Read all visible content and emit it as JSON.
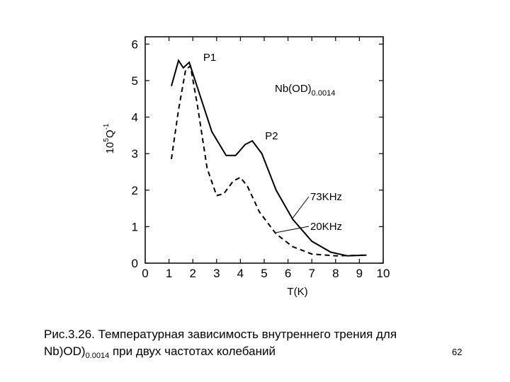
{
  "chart_data": {
    "type": "line",
    "x_label": "T(K)",
    "y_label": {
      "base": "10",
      "exp": "5",
      "symbol": "Q",
      "symbol_exp": "-1"
    },
    "formula": {
      "text": "Nb(OD)",
      "sub": "0.0014"
    },
    "peak_labels": [
      {
        "text": "P1",
        "x": 1.9,
        "y": 5.5
      },
      {
        "text": "P2",
        "x": 4.5,
        "y": 3.35
      }
    ],
    "series": [
      {
        "name": "73KHz",
        "color": "#000000",
        "dash": false,
        "x": [
          1.1,
          1.4,
          1.6,
          1.85,
          2.2,
          2.8,
          3.4,
          3.8,
          4.2,
          4.5,
          4.9,
          5.5,
          6.2,
          7,
          7.8,
          8.5,
          9.3
        ],
        "values": [
          4.85,
          5.55,
          5.35,
          5.5,
          4.8,
          3.6,
          2.95,
          2.95,
          3.25,
          3.35,
          3.0,
          2.0,
          1.2,
          0.6,
          0.3,
          0.2,
          0.22
        ]
      },
      {
        "name": "20KHz",
        "color": "#000000",
        "dash": true,
        "x": [
          1.1,
          1.4,
          1.7,
          1.9,
          2.2,
          2.6,
          3.0,
          3.3,
          3.7,
          4.0,
          4.3,
          4.8,
          5.5,
          6.2,
          7,
          8,
          9.3
        ],
        "values": [
          2.85,
          4.2,
          5.3,
          5.4,
          4.3,
          2.6,
          1.85,
          1.9,
          2.25,
          2.35,
          2.1,
          1.4,
          0.8,
          0.45,
          0.25,
          0.2,
          0.22
        ]
      }
    ],
    "xlim": [
      0,
      10
    ],
    "xticks": [
      0,
      1,
      2,
      3,
      4,
      5,
      6,
      7,
      8,
      9,
      10
    ],
    "ylim": [
      0,
      6.2
    ],
    "yticks": [
      0,
      1,
      2,
      3,
      4,
      5,
      6
    ]
  },
  "caption": {
    "line1": "Рис.3.26. Температурная зависимость внутреннего трения для",
    "line2_start": "Nb)OD)",
    "line2_sub": "0.0014",
    "line2_end": " при двух частотах колебаний"
  },
  "page_number": "62"
}
